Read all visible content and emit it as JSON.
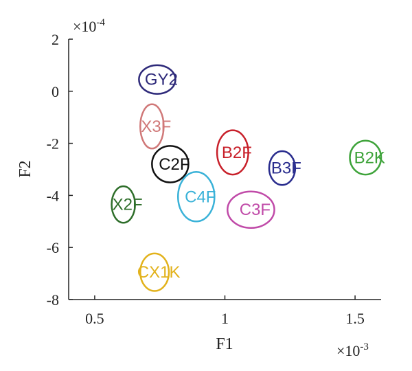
{
  "chart_data": {
    "type": "scatter",
    "xlabel": "F1",
    "ylabel": "F2",
    "xlim": [
      0.4,
      1.6
    ],
    "ylim": [
      -8,
      2
    ],
    "x_multiplier": "×10",
    "x_multiplier_exp": "-3",
    "y_multiplier": "×10",
    "y_multiplier_exp": "-4",
    "xticks": [
      {
        "value": 0.5,
        "label": "0.5"
      },
      {
        "value": 1.0,
        "label": "1"
      },
      {
        "value": 1.5,
        "label": "1.5"
      }
    ],
    "yticks": [
      {
        "value": 2,
        "label": "2"
      },
      {
        "value": 0,
        "label": "0"
      },
      {
        "value": -2,
        "label": "-2"
      },
      {
        "value": -4,
        "label": "-4"
      },
      {
        "value": -6,
        "label": "-6"
      },
      {
        "value": -8,
        "label": "-8"
      }
    ],
    "grid": false,
    "legend": "none",
    "clusters": [
      {
        "label": "GY2",
        "x": 0.74,
        "y": 0.45,
        "rx": 0.07,
        "ry": 0.55,
        "color": "#2e2a7a"
      },
      {
        "label": "X3F",
        "x": 0.72,
        "y": -1.35,
        "rx": 0.045,
        "ry": 0.85,
        "color": "#d07878"
      },
      {
        "label": "C2F",
        "x": 0.79,
        "y": -2.8,
        "rx": 0.07,
        "ry": 0.7,
        "color": "#111111"
      },
      {
        "label": "B2F",
        "x": 1.03,
        "y": -2.35,
        "rx": 0.06,
        "ry": 0.85,
        "color": "#c8202a"
      },
      {
        "label": "B3F",
        "x": 1.22,
        "y": -2.95,
        "rx": 0.05,
        "ry": 0.65,
        "color": "#2a2d8e"
      },
      {
        "label": "B2K",
        "x": 1.54,
        "y": -2.55,
        "rx": 0.06,
        "ry": 0.65,
        "color": "#3ea33a"
      },
      {
        "label": "C4F",
        "x": 0.89,
        "y": -4.05,
        "rx": 0.07,
        "ry": 0.95,
        "color": "#3ab2d8"
      },
      {
        "label": "X2F",
        "x": 0.61,
        "y": -4.35,
        "rx": 0.045,
        "ry": 0.7,
        "color": "#2e6e2a"
      },
      {
        "label": "C3F",
        "x": 1.1,
        "y": -4.55,
        "rx": 0.09,
        "ry": 0.7,
        "color": "#c04aa8"
      },
      {
        "label": "CX1K",
        "x": 0.73,
        "y": -6.95,
        "rx": 0.055,
        "ry": 0.72,
        "color": "#e2b21c"
      }
    ]
  }
}
